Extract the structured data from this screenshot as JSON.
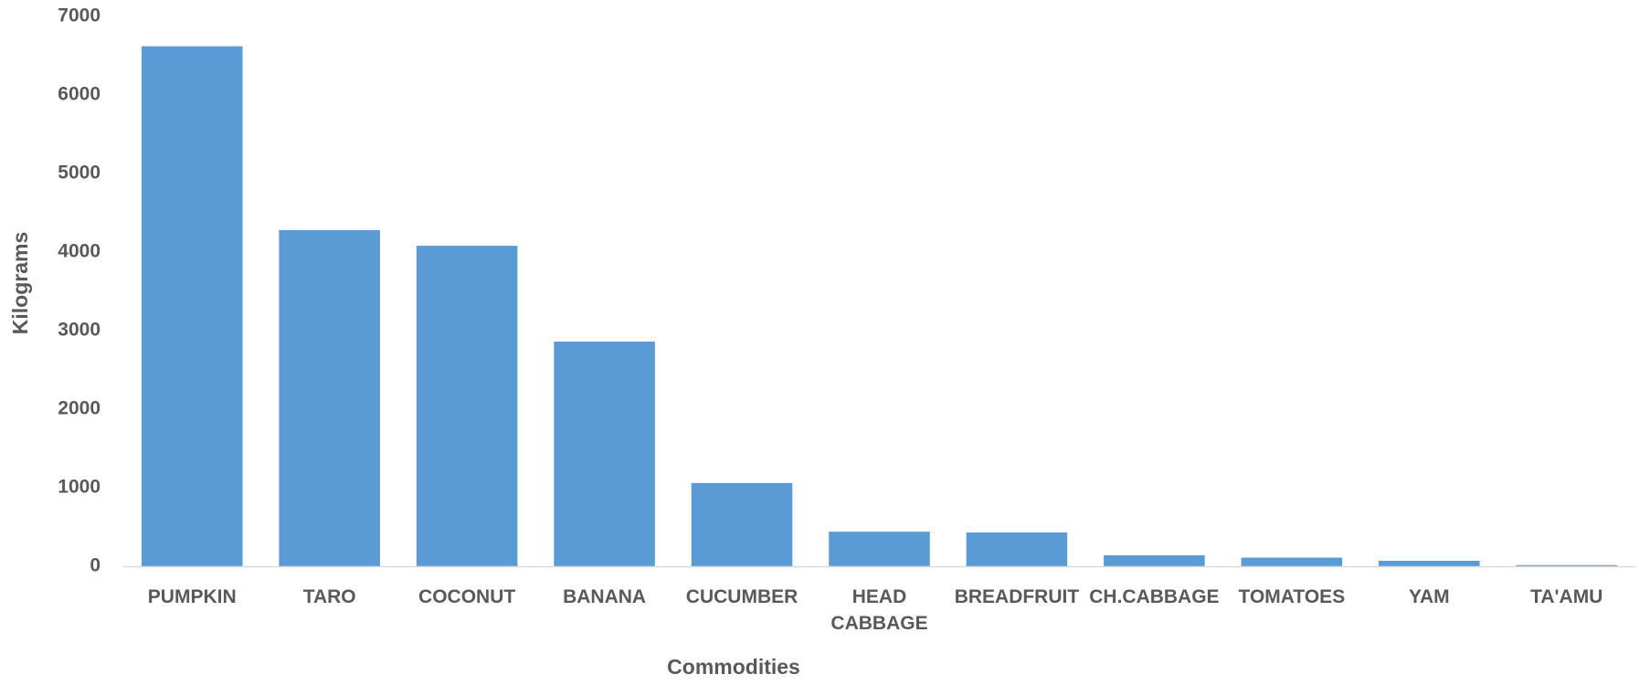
{
  "chart_data": {
    "type": "bar",
    "title": "",
    "xlabel": "Commodities",
    "ylabel": "Kilograms",
    "categories": [
      "PUMPKIN",
      "TARO",
      "COCONUT",
      "BANANA",
      "CUCUMBER",
      "HEAD CABBAGE",
      "BREADFRUIT",
      "CH.CABBAGE",
      "TOMATOES",
      "YAM",
      "TA'AMU"
    ],
    "category_label_lines": [
      [
        "PUMPKIN"
      ],
      [
        "TARO"
      ],
      [
        "COCONUT"
      ],
      [
        "BANANA"
      ],
      [
        "CUCUMBER"
      ],
      [
        "HEAD",
        "CABBAGE"
      ],
      [
        "BREADFRUIT"
      ],
      [
        "CH.CABBAGE"
      ],
      [
        "TOMATOES"
      ],
      [
        "YAM"
      ],
      [
        "TA'AMU"
      ]
    ],
    "values": [
      6620,
      4280,
      4080,
      2860,
      1060,
      440,
      430,
      140,
      110,
      70,
      15
    ],
    "ylim": [
      0,
      7000
    ],
    "yticks": [
      0,
      1000,
      2000,
      3000,
      4000,
      5000,
      6000,
      7000
    ],
    "grid": false,
    "legend": "none",
    "colors": {
      "bar": "#5b9bd5",
      "text": "#595959",
      "axis": "#d9d9d9"
    }
  }
}
